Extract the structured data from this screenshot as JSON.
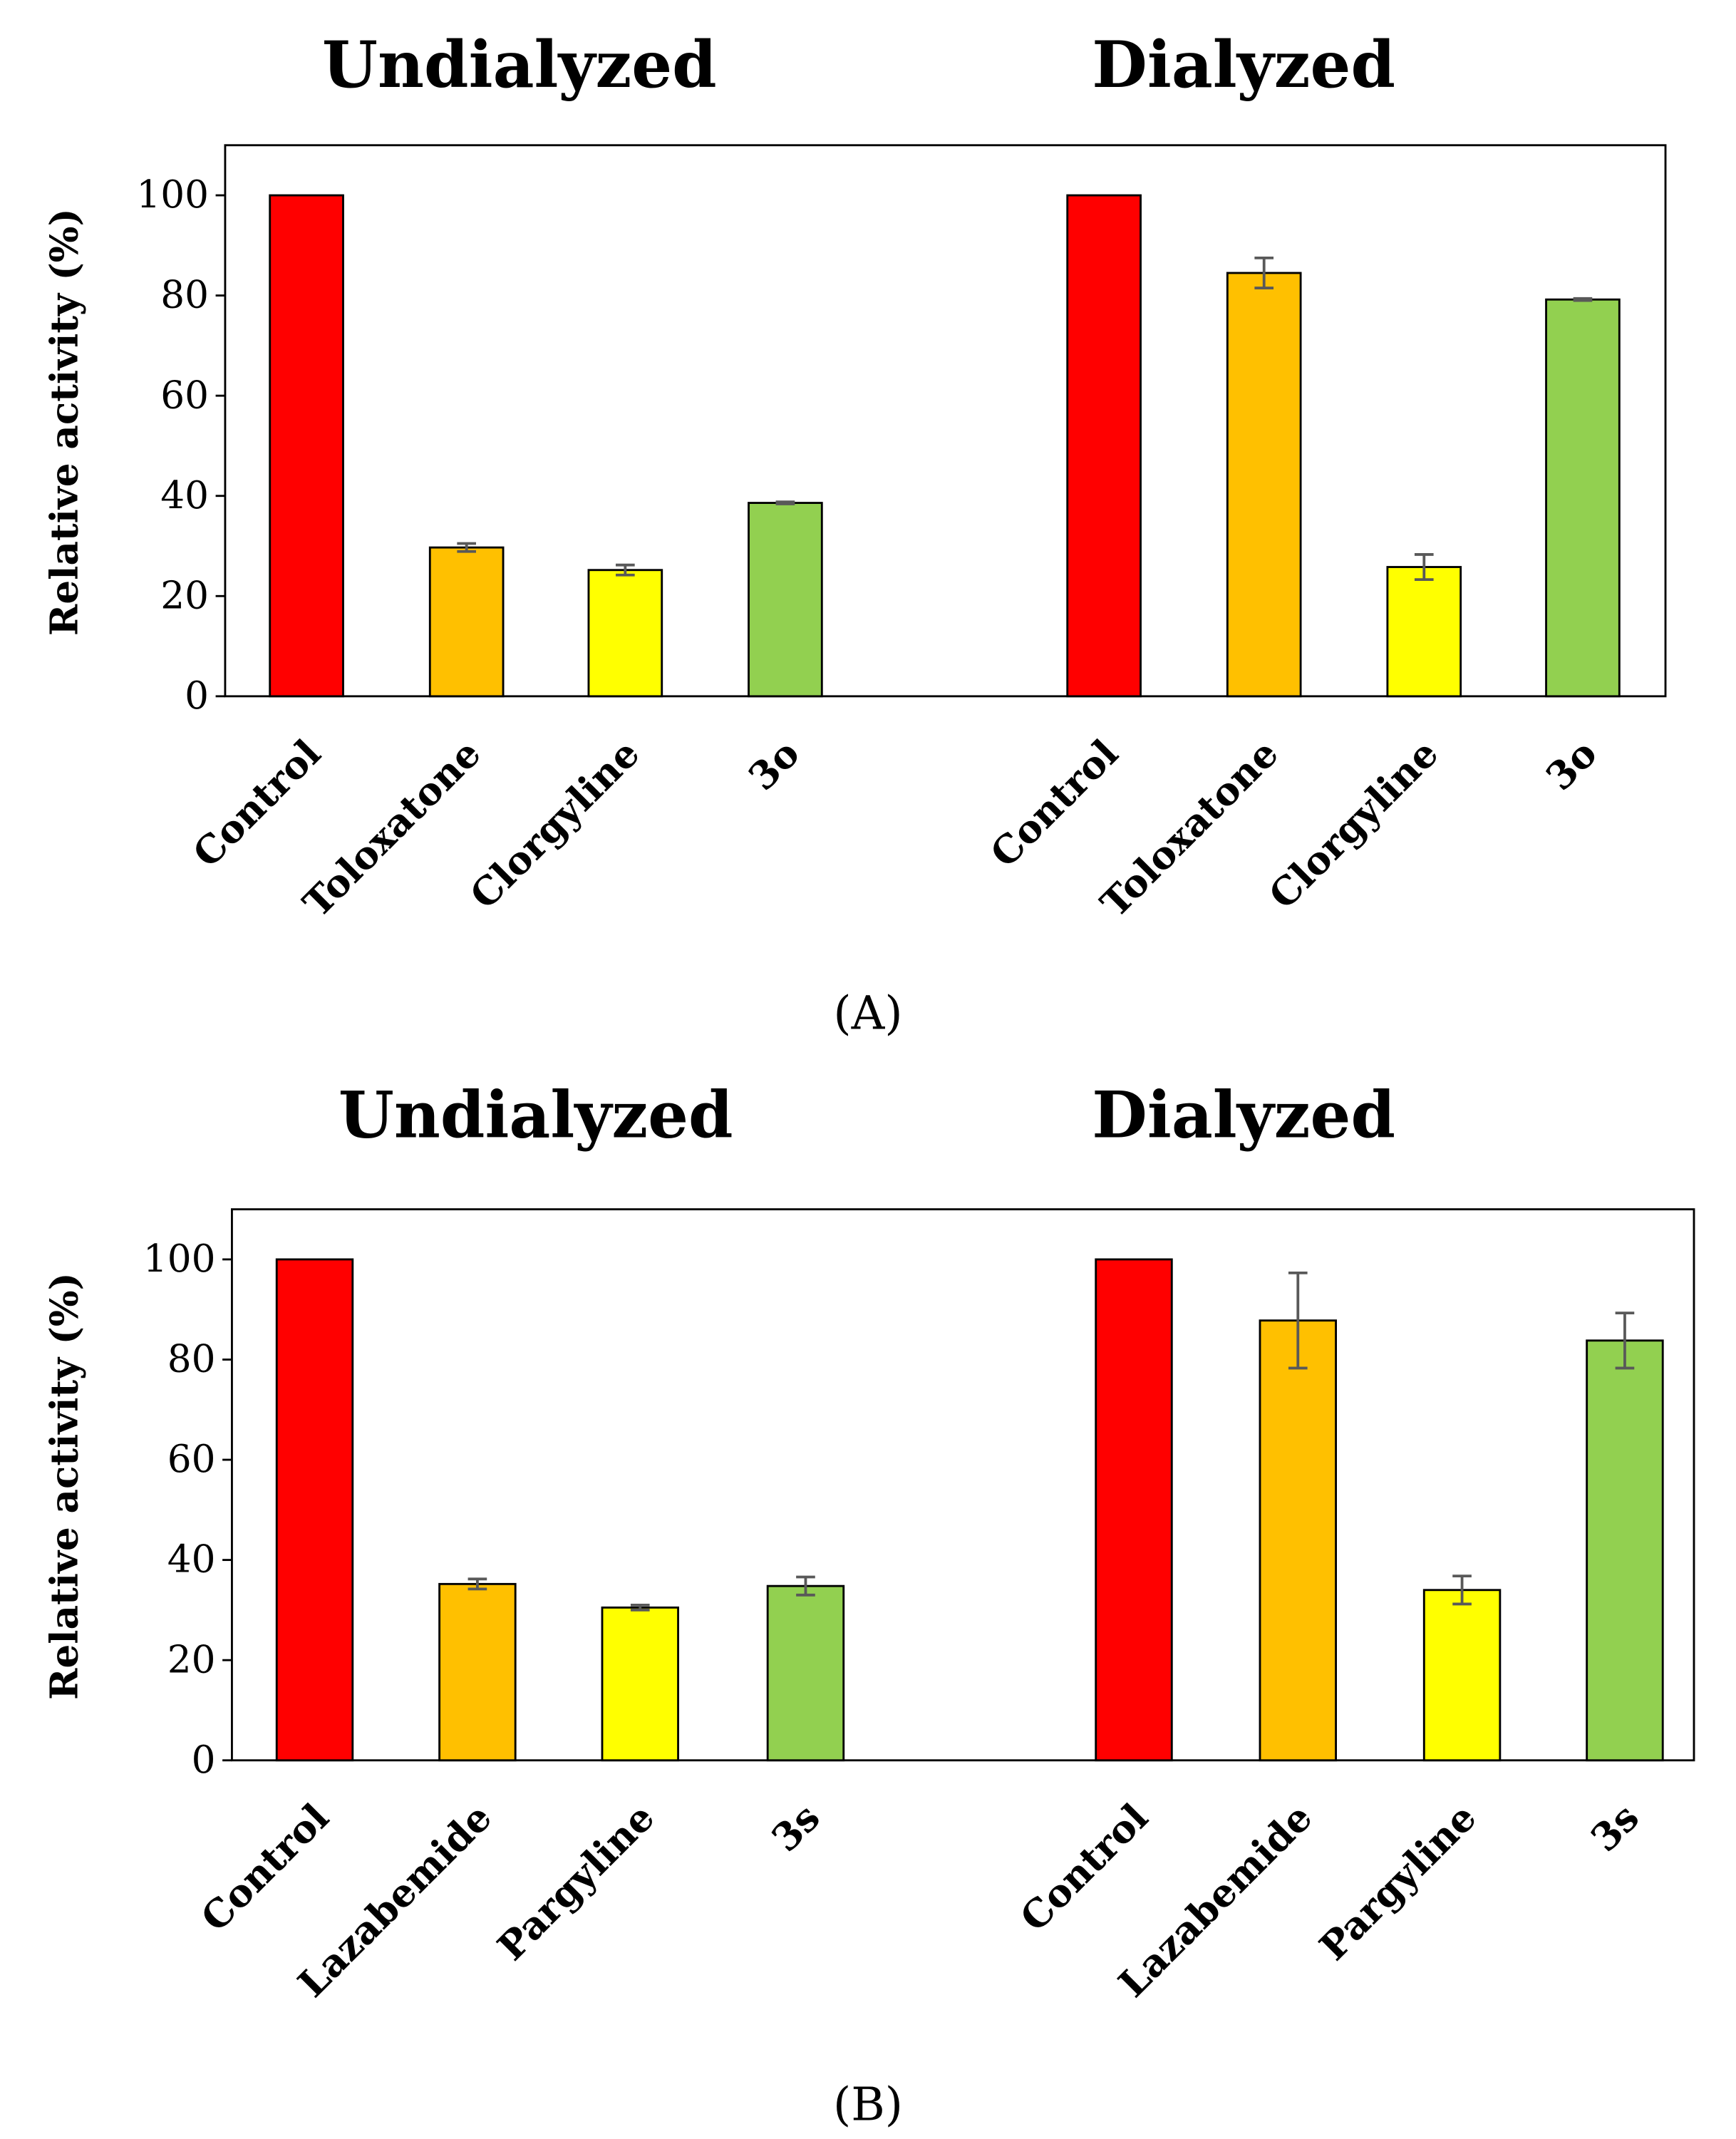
{
  "colors": {
    "control": "#FF0000",
    "orange": "#FFC000",
    "yellow": "#FFFF00",
    "green": "#92D050",
    "bar_outline": "#000000",
    "error_bar": "#595959"
  },
  "chart_data": [
    {
      "type": "bar",
      "panel_label": "(A)",
      "ylabel": "Relative activity (%)",
      "ylim": [
        0,
        110
      ],
      "yticks": [
        0,
        20,
        40,
        60,
        80,
        100
      ],
      "grid": false,
      "groups": [
        {
          "title": "Undialyzed",
          "categories": [
            "Control",
            "Toloxatone",
            "Clorgyline",
            "3o"
          ],
          "values": [
            100,
            29.7,
            25.2,
            38.6
          ],
          "errors": [
            0,
            0.8,
            1.0,
            0.2
          ]
        },
        {
          "title": "Dialyzed",
          "categories": [
            "Control",
            "Toloxatone",
            "Clorgyline",
            "3o"
          ],
          "values": [
            100,
            84.5,
            25.8,
            79.2
          ],
          "errors": [
            0,
            3.0,
            2.5,
            0.2
          ]
        }
      ]
    },
    {
      "type": "bar",
      "panel_label": "(B)",
      "ylabel": "Relative activity (%)",
      "ylim": [
        0,
        110
      ],
      "yticks": [
        0,
        20,
        40,
        60,
        80,
        100
      ],
      "grid": false,
      "groups": [
        {
          "title": "Undialyzed",
          "categories": [
            "Control",
            "Lazabemide",
            "Pargyline",
            "3s"
          ],
          "values": [
            100,
            35.2,
            30.5,
            34.8
          ],
          "errors": [
            0,
            1.0,
            0.5,
            1.8
          ]
        },
        {
          "title": "Dialyzed",
          "categories": [
            "Control",
            "Lazabemide",
            "Pargyline",
            "3s"
          ],
          "values": [
            100,
            87.8,
            34.0,
            83.8
          ],
          "errors": [
            0,
            9.5,
            2.8,
            5.5
          ]
        }
      ]
    }
  ]
}
